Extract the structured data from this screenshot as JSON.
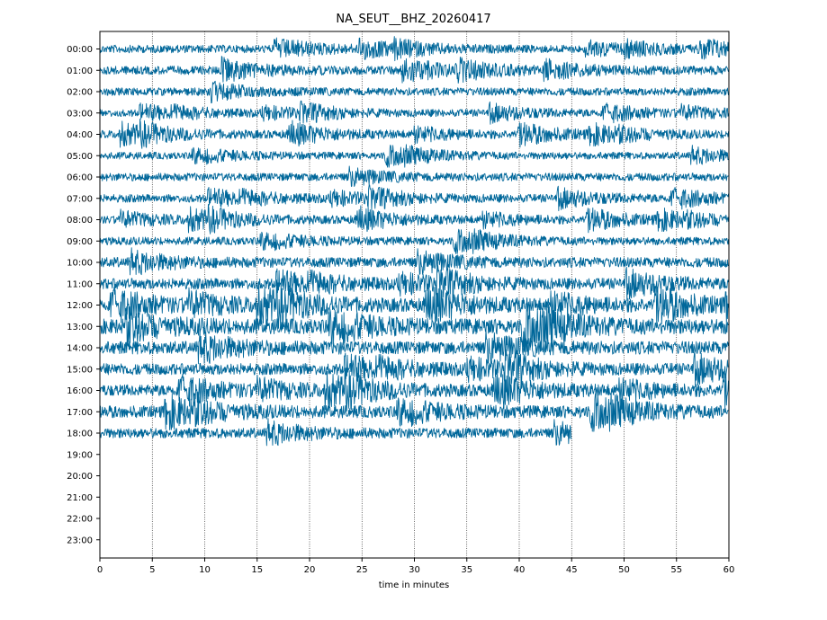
{
  "chart_data": {
    "type": "line",
    "title": "NA_SEUT__BHZ_20260417",
    "xlabel": "time in minutes",
    "ylabel": "",
    "xlim": [
      0,
      60
    ],
    "x_ticks": [
      "0",
      "5",
      "10",
      "15",
      "20",
      "25",
      "30",
      "35",
      "40",
      "45",
      "50",
      "55",
      "60"
    ],
    "y_ticks": [
      "00:00",
      "01:00",
      "02:00",
      "03:00",
      "04:00",
      "05:00",
      "06:00",
      "07:00",
      "08:00",
      "09:00",
      "10:00",
      "11:00",
      "12:00",
      "13:00",
      "14:00",
      "15:00",
      "16:00",
      "17:00",
      "18:00",
      "19:00",
      "20:00",
      "21:00",
      "22:00",
      "23:00"
    ],
    "grid": "vertical dotted at x ticks",
    "trace_color": "#00679a",
    "rows": [
      {
        "hour": "00:00",
        "end_minute": 60,
        "amplitude": 0.22
      },
      {
        "hour": "01:00",
        "end_minute": 60,
        "amplitude": 0.24
      },
      {
        "hour": "02:00",
        "end_minute": 60,
        "amplitude": 0.22
      },
      {
        "hour": "03:00",
        "end_minute": 60,
        "amplitude": 0.2
      },
      {
        "hour": "04:00",
        "end_minute": 60,
        "amplitude": 0.22
      },
      {
        "hour": "05:00",
        "end_minute": 60,
        "amplitude": 0.2
      },
      {
        "hour": "06:00",
        "end_minute": 60,
        "amplitude": 0.22
      },
      {
        "hour": "07:00",
        "end_minute": 60,
        "amplitude": 0.22
      },
      {
        "hour": "08:00",
        "end_minute": 60,
        "amplitude": 0.22
      },
      {
        "hour": "09:00",
        "end_minute": 60,
        "amplitude": 0.22
      },
      {
        "hour": "10:00",
        "end_minute": 60,
        "amplitude": 0.28
      },
      {
        "hour": "11:00",
        "end_minute": 60,
        "amplitude": 0.3
      },
      {
        "hour": "12:00",
        "end_minute": 60,
        "amplitude": 0.36
      },
      {
        "hour": "13:00",
        "end_minute": 60,
        "amplitude": 0.42
      },
      {
        "hour": "14:00",
        "end_minute": 60,
        "amplitude": 0.36
      },
      {
        "hour": "15:00",
        "end_minute": 60,
        "amplitude": 0.32
      },
      {
        "hour": "16:00",
        "end_minute": 60,
        "amplitude": 0.32
      },
      {
        "hour": "17:00",
        "end_minute": 60,
        "amplitude": 0.34
      },
      {
        "hour": "18:00",
        "end_minute": 45,
        "amplitude": 0.28
      }
    ]
  }
}
